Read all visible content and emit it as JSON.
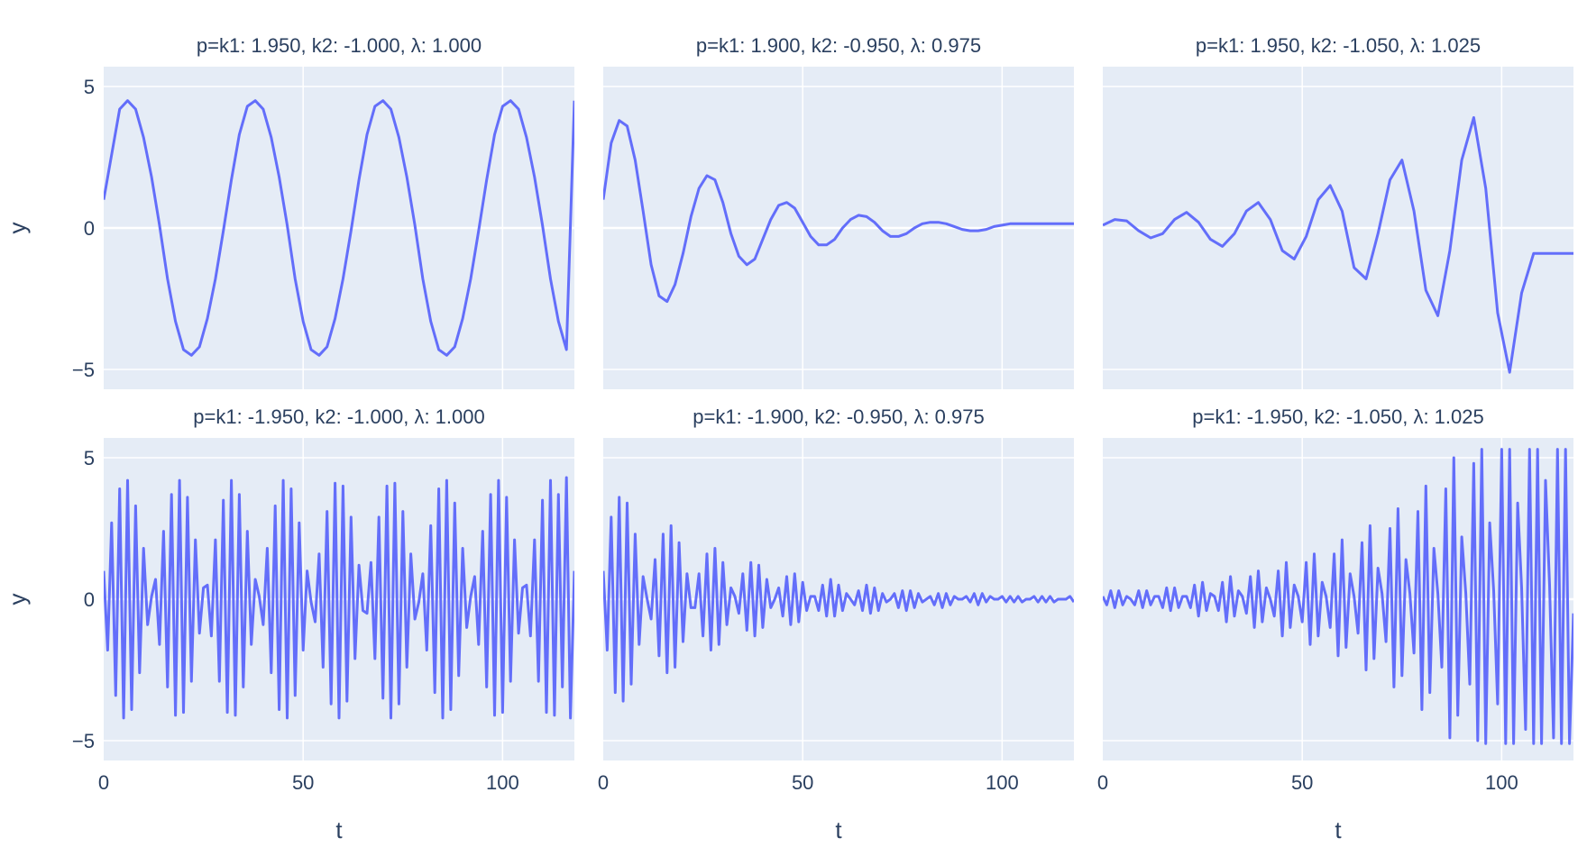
{
  "figure": {
    "line_color": "#636efa",
    "plot_bg": "#e5ecf6",
    "grid_color": "#ffffff",
    "text_color": "#2a3f5f"
  },
  "chart_data": [
    {
      "type": "line",
      "title": "p=k1: 1.950, k2: -1.000, λ: 1.000",
      "xlabel": "",
      "ylabel": "y",
      "xlim": [
        0,
        118
      ],
      "ylim": [
        -5.7,
        5.7
      ],
      "xticks": [],
      "yticks": [
        "5",
        "0",
        "−5"
      ],
      "x": [
        0,
        4,
        6,
        8,
        10,
        12,
        14,
        16,
        18,
        20,
        22,
        24,
        26,
        28,
        30,
        32,
        34,
        36,
        38,
        40,
        42,
        44,
        46,
        48,
        50,
        52,
        54,
        56,
        58,
        60,
        62,
        64,
        66,
        68,
        70,
        72,
        74,
        76,
        78,
        80,
        82,
        84,
        86,
        88,
        90,
        92,
        94,
        96,
        98,
        100,
        102,
        104,
        106,
        108,
        110,
        112,
        114,
        116,
        118
      ],
      "series": [
        {
          "values": [
            1.0,
            4.2,
            4.5,
            4.2,
            3.2,
            1.8,
            0.1,
            -1.8,
            -3.3,
            -4.3,
            -4.5,
            -4.2,
            -3.2,
            -1.8,
            -0.1,
            1.7,
            3.3,
            4.3,
            4.5,
            4.2,
            3.2,
            1.8,
            0.1,
            -1.8,
            -3.3,
            -4.3,
            -4.5,
            -4.2,
            -3.2,
            -1.8,
            -0.1,
            1.7,
            3.3,
            4.3,
            4.5,
            4.2,
            3.2,
            1.8,
            0.1,
            -1.8,
            -3.3,
            -4.3,
            -4.5,
            -4.2,
            -3.2,
            -1.8,
            -0.1,
            1.7,
            3.3,
            4.3,
            4.5,
            4.2,
            3.2,
            1.8,
            0.1,
            -1.8,
            -3.3,
            -4.3,
            4.5
          ]
        }
      ]
    },
    {
      "type": "line",
      "title": "p=k1: 1.900, k2: -0.950, λ: 0.975",
      "xlabel": "",
      "ylabel": "",
      "xlim": [
        0,
        118
      ],
      "ylim": [
        -5.7,
        5.7
      ],
      "xticks": [],
      "yticks": [],
      "x": [
        0,
        2,
        4,
        6,
        8,
        10,
        12,
        14,
        16,
        18,
        20,
        22,
        24,
        26,
        28,
        30,
        32,
        34,
        36,
        38,
        40,
        42,
        44,
        46,
        48,
        50,
        52,
        54,
        56,
        58,
        60,
        62,
        64,
        66,
        68,
        70,
        72,
        74,
        76,
        78,
        80,
        82,
        84,
        86,
        88,
        90,
        92,
        94,
        96,
        98,
        100,
        102,
        104,
        106,
        108,
        110,
        112,
        114,
        116,
        118
      ],
      "series": [
        {
          "values": [
            1.0,
            3.0,
            3.8,
            3.6,
            2.4,
            0.6,
            -1.3,
            -2.4,
            -2.6,
            -2.0,
            -0.9,
            0.4,
            1.4,
            1.85,
            1.7,
            0.9,
            -0.2,
            -1.0,
            -1.3,
            -1.1,
            -0.4,
            0.3,
            0.8,
            0.9,
            0.7,
            0.2,
            -0.3,
            -0.6,
            -0.6,
            -0.4,
            0.0,
            0.3,
            0.45,
            0.4,
            0.2,
            -0.1,
            -0.3,
            -0.3,
            -0.2,
            0.0,
            0.15,
            0.2,
            0.2,
            0.15,
            0.05,
            -0.05,
            -0.1,
            -0.1,
            -0.05,
            0.05,
            0.1,
            0.15,
            0.15,
            0.15,
            0.15,
            0.15,
            0.15,
            0.15,
            0.15,
            0.15
          ]
        }
      ]
    },
    {
      "type": "line",
      "title": "p=k1: 1.950, k2: -1.050, λ: 1.025",
      "xlabel": "",
      "ylabel": "",
      "xlim": [
        0,
        118
      ],
      "ylim": [
        -5.7,
        5.7
      ],
      "xticks": [],
      "yticks": [],
      "x": [
        0,
        3,
        6,
        9,
        12,
        15,
        18,
        21,
        24,
        27,
        30,
        33,
        36,
        39,
        42,
        45,
        48,
        51,
        54,
        57,
        60,
        63,
        66,
        69,
        72,
        75,
        78,
        81,
        84,
        87,
        90,
        93,
        96,
        99,
        102,
        105,
        108,
        111,
        114,
        117,
        118
      ],
      "series": [
        {
          "values": [
            0.1,
            0.3,
            0.25,
            -0.1,
            -0.35,
            -0.2,
            0.3,
            0.55,
            0.2,
            -0.4,
            -0.65,
            -0.2,
            0.6,
            0.9,
            0.3,
            -0.8,
            -1.1,
            -0.3,
            1.0,
            1.5,
            0.6,
            -1.4,
            -1.8,
            -0.2,
            1.7,
            2.4,
            0.6,
            -2.2,
            -3.1,
            -0.8,
            2.4,
            3.9,
            1.4,
            -3.0,
            -5.1,
            -2.3,
            -0.9,
            -0.9,
            -0.9,
            -0.9,
            -0.9
          ]
        }
      ]
    },
    {
      "type": "line",
      "title": "p=k1: -1.950, k2: -1.000, λ: 1.000",
      "xlabel": "t",
      "ylabel": "y",
      "xlim": [
        0,
        118
      ],
      "ylim": [
        -5.7,
        5.7
      ],
      "xticks": [
        "0",
        "50",
        "100"
      ],
      "yticks": [
        "5",
        "0",
        "−5"
      ],
      "x": [
        0,
        1,
        2,
        3,
        4,
        5,
        6,
        7,
        8,
        9,
        10,
        11,
        12,
        13,
        14,
        15,
        16,
        17,
        18,
        19,
        20,
        21,
        22,
        23,
        24,
        25,
        26,
        27,
        28,
        29,
        30,
        31,
        32,
        33,
        34,
        35,
        36,
        37,
        38,
        39,
        40,
        41,
        42,
        43,
        44,
        45,
        46,
        47,
        48,
        49,
        50,
        51,
        52,
        53,
        54,
        55,
        56,
        57,
        58,
        59,
        60,
        61,
        62,
        63,
        64,
        65,
        66,
        67,
        68,
        69,
        70,
        71,
        72,
        73,
        74,
        75,
        76,
        77,
        78,
        79,
        80,
        81,
        82,
        83,
        84,
        85,
        86,
        87,
        88,
        89,
        90,
        91,
        92,
        93,
        94,
        95,
        96,
        97,
        98,
        99,
        100,
        101,
        102,
        103,
        104,
        105,
        106,
        107,
        108,
        109,
        110,
        111,
        112,
        113,
        114,
        115,
        116,
        117,
        118
      ],
      "series": [
        {
          "values": [
            1.0,
            -1.8,
            2.7,
            -3.4,
            3.9,
            -4.2,
            4.2,
            -3.9,
            3.3,
            -2.6,
            1.8,
            -0.9,
            0.1,
            0.7,
            -1.6,
            2.4,
            -3.1,
            3.7,
            -4.1,
            4.2,
            -4.0,
            3.6,
            -2.9,
            2.1,
            -1.2,
            0.4,
            0.5,
            -1.3,
            2.1,
            -2.9,
            3.5,
            -4.0,
            4.2,
            -4.1,
            3.7,
            -3.1,
            2.4,
            -1.6,
            0.7,
            0.1,
            -0.9,
            1.8,
            -2.6,
            3.3,
            -3.9,
            4.2,
            -4.2,
            3.9,
            -3.4,
            2.7,
            -1.8,
            1.0,
            -0.1,
            -0.8,
            1.6,
            -2.4,
            3.1,
            -3.7,
            4.1,
            -4.2,
            4.0,
            -3.6,
            2.9,
            -2.1,
            1.2,
            -0.4,
            -0.5,
            1.3,
            -2.1,
            2.9,
            -3.5,
            4.0,
            -4.2,
            4.1,
            -3.7,
            3.1,
            -2.4,
            1.6,
            -0.7,
            -0.1,
            0.9,
            -1.8,
            2.6,
            -3.3,
            3.9,
            -4.2,
            4.2,
            -3.9,
            3.4,
            -2.7,
            1.8,
            -1.0,
            0.1,
            0.8,
            -1.6,
            2.4,
            -3.1,
            3.7,
            -4.1,
            4.2,
            -4.0,
            3.6,
            -2.9,
            2.1,
            -1.2,
            0.4,
            0.5,
            -1.3,
            2.1,
            -2.9,
            3.5,
            -4.0,
            4.2,
            -4.1,
            3.7,
            -3.1,
            4.3,
            -4.2,
            1.0
          ]
        }
      ]
    },
    {
      "type": "line",
      "title": "p=k1: -1.900, k2: -0.950, λ: 0.975",
      "xlabel": "t",
      "ylabel": "",
      "xlim": [
        0,
        118
      ],
      "ylim": [
        -5.7,
        5.7
      ],
      "xticks": [
        "0",
        "50",
        "100"
      ],
      "yticks": [],
      "x": [
        0,
        1,
        2,
        3,
        4,
        5,
        6,
        7,
        8,
        9,
        10,
        11,
        12,
        13,
        14,
        15,
        16,
        17,
        18,
        19,
        20,
        21,
        22,
        23,
        24,
        25,
        26,
        27,
        28,
        29,
        30,
        31,
        32,
        33,
        34,
        35,
        36,
        37,
        38,
        39,
        40,
        41,
        42,
        43,
        44,
        45,
        46,
        47,
        48,
        49,
        50,
        51,
        52,
        53,
        54,
        55,
        56,
        57,
        58,
        59,
        60,
        61,
        62,
        63,
        64,
        65,
        66,
        67,
        68,
        69,
        70,
        71,
        72,
        73,
        74,
        75,
        76,
        77,
        78,
        79,
        80,
        81,
        82,
        83,
        84,
        85,
        86,
        87,
        88,
        89,
        90,
        91,
        92,
        93,
        94,
        95,
        96,
        97,
        98,
        99,
        100,
        101,
        102,
        103,
        104,
        105,
        106,
        107,
        108,
        109,
        110,
        111,
        112,
        113,
        114,
        115,
        116,
        117,
        118
      ],
      "series": [
        {
          "values": [
            1.0,
            -1.8,
            2.9,
            -3.3,
            3.6,
            -3.6,
            3.4,
            -3.0,
            2.3,
            -1.6,
            0.8,
            0.0,
            -0.7,
            1.4,
            -2.0,
            2.3,
            -2.6,
            2.6,
            -2.4,
            2.0,
            -1.5,
            0.9,
            -0.3,
            -0.3,
            0.9,
            -1.3,
            1.6,
            -1.8,
            1.8,
            -1.6,
            1.3,
            -0.9,
            0.4,
            0.1,
            -0.5,
            0.9,
            -1.1,
            1.3,
            -1.3,
            1.2,
            -1.0,
            0.7,
            -0.3,
            0.0,
            0.4,
            -0.6,
            0.8,
            -0.9,
            0.9,
            -0.8,
            0.6,
            -0.4,
            0.1,
            0.1,
            -0.4,
            0.5,
            -0.6,
            0.7,
            -0.6,
            0.5,
            -0.4,
            0.2,
            0.0,
            -0.2,
            0.3,
            -0.4,
            0.5,
            -0.5,
            0.4,
            -0.4,
            0.2,
            -0.1,
            0.0,
            0.2,
            -0.3,
            0.3,
            -0.4,
            0.3,
            -0.3,
            0.2,
            -0.1,
            0.0,
            0.1,
            -0.2,
            0.2,
            -0.3,
            0.2,
            -0.2,
            0.1,
            0.0,
            0.0,
            0.1,
            -0.1,
            0.2,
            -0.2,
            0.2,
            -0.1,
            0.1,
            0.0,
            0.0,
            0.1,
            -0.1,
            0.1,
            -0.1,
            0.1,
            -0.1,
            0.0,
            0.0,
            0.1,
            -0.1,
            0.1,
            -0.1,
            0.1,
            -0.1,
            0.0,
            0.0,
            0.0,
            0.1,
            -0.1
          ]
        }
      ]
    },
    {
      "type": "line",
      "title": "p=k1: -1.950, k2: -1.050, λ: 1.025",
      "xlabel": "t",
      "ylabel": "",
      "xlim": [
        0,
        118
      ],
      "ylim": [
        -5.7,
        5.7
      ],
      "xticks": [
        "0",
        "50",
        "100"
      ],
      "yticks": [],
      "x": [
        0,
        1,
        2,
        3,
        4,
        5,
        6,
        7,
        8,
        9,
        10,
        11,
        12,
        13,
        14,
        15,
        16,
        17,
        18,
        19,
        20,
        21,
        22,
        23,
        24,
        25,
        26,
        27,
        28,
        29,
        30,
        31,
        32,
        33,
        34,
        35,
        36,
        37,
        38,
        39,
        40,
        41,
        42,
        43,
        44,
        45,
        46,
        47,
        48,
        49,
        50,
        51,
        52,
        53,
        54,
        55,
        56,
        57,
        58,
        59,
        60,
        61,
        62,
        63,
        64,
        65,
        66,
        67,
        68,
        69,
        70,
        71,
        72,
        73,
        74,
        75,
        76,
        77,
        78,
        79,
        80,
        81,
        82,
        83,
        84,
        85,
        86,
        87,
        88,
        89,
        90,
        91,
        92,
        93,
        94,
        95,
        96,
        97,
        98,
        99,
        100,
        101,
        102,
        103,
        104,
        105,
        106,
        107,
        108,
        109,
        110,
        111,
        112,
        113,
        114,
        115,
        116,
        117,
        118
      ],
      "series": [
        {
          "values": [
            0.1,
            -0.2,
            0.3,
            -0.3,
            0.3,
            -0.2,
            0.1,
            0.0,
            -0.2,
            0.3,
            -0.3,
            0.3,
            -0.2,
            0.1,
            0.1,
            -0.3,
            0.4,
            -0.4,
            0.4,
            -0.3,
            0.1,
            0.1,
            -0.3,
            0.5,
            -0.6,
            0.6,
            -0.4,
            0.2,
            0.1,
            -0.4,
            0.6,
            -0.8,
            0.8,
            -0.6,
            0.3,
            0.1,
            -0.5,
            0.8,
            -1.0,
            1.0,
            -0.8,
            0.4,
            0.0,
            -0.6,
            1.0,
            -1.3,
            1.3,
            -1.0,
            0.5,
            0.1,
            -0.8,
            1.3,
            -1.6,
            1.6,
            -1.3,
            0.6,
            0.1,
            -1.0,
            1.6,
            -2.0,
            2.1,
            -1.7,
            0.9,
            0.1,
            -1.2,
            2.0,
            -2.5,
            2.6,
            -2.1,
            1.1,
            0.2,
            -1.5,
            2.5,
            -3.1,
            3.2,
            -2.7,
            1.4,
            0.2,
            -1.9,
            3.1,
            -3.9,
            4.0,
            -3.3,
            1.8,
            0.2,
            -2.4,
            3.9,
            -4.9,
            5.0,
            -4.1,
            2.2,
            0.2,
            -3.0,
            4.8,
            -5.0,
            5.3,
            -5.1,
            2.7,
            0.3,
            -3.7,
            5.3,
            -5.1,
            5.3,
            -5.1,
            3.4,
            0.4,
            -4.6,
            5.3,
            -5.1,
            5.3,
            -5.1,
            4.2,
            0.5,
            -4.9,
            5.3,
            -5.1,
            5.3,
            -5.1,
            -0.5
          ]
        }
      ]
    }
  ]
}
